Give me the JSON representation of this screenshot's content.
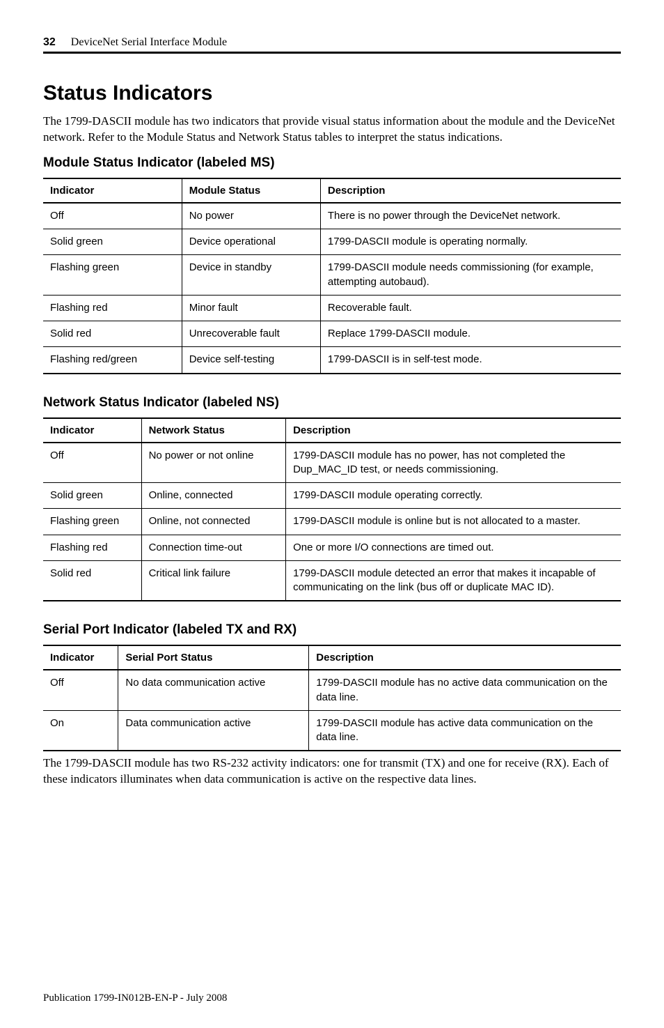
{
  "header": {
    "page_number": "32",
    "running_title": "DeviceNet Serial Interface Module"
  },
  "section": {
    "title": "Status Indicators",
    "intro": "The 1799-DASCII module has two indicators that provide visual status information about the module and the DeviceNet network. Refer to the Module Status and Network Status tables to interpret the status indications."
  },
  "module_status": {
    "heading": "Module Status Indicator (labeled MS)",
    "columns": [
      "Indicator",
      "Module Status",
      "Description"
    ],
    "col_widths": [
      "24%",
      "24%",
      "52%"
    ],
    "rows": [
      [
        "Off",
        "No power",
        "There is no power through the DeviceNet network."
      ],
      [
        "Solid green",
        "Device operational",
        "1799-DASCII module is operating normally."
      ],
      [
        "Flashing green",
        "Device in standby",
        "1799-DASCII module needs commissioning (for example, attempting autobaud)."
      ],
      [
        "Flashing red",
        "Minor fault",
        "Recoverable fault."
      ],
      [
        "Solid red",
        "Unrecoverable fault",
        "Replace 1799-DASCII module."
      ],
      [
        "Flashing red/green",
        "Device self-testing",
        "1799-DASCII is in self-test mode."
      ]
    ]
  },
  "network_status": {
    "heading": "Network Status Indicator (labeled NS)",
    "columns": [
      "Indicator",
      "Network Status",
      "Description"
    ],
    "col_widths": [
      "17%",
      "25%",
      "58%"
    ],
    "rows": [
      [
        "Off",
        "No power or not online",
        "1799-DASCII module has no power, has not completed the Dup_MAC_ID test, or needs commissioning."
      ],
      [
        "Solid green",
        "Online, connected",
        "1799-DASCII module operating correctly."
      ],
      [
        "Flashing green",
        "Online, not connected",
        "1799-DASCII module is online but is not allocated to a master."
      ],
      [
        "Flashing red",
        "Connection time-out",
        "One or more I/O connections are timed out."
      ],
      [
        "Solid red",
        "Critical link failure",
        "1799-DASCII module detected an error that makes it incapable of communicating on the link (bus off or duplicate MAC ID)."
      ]
    ]
  },
  "serial_port": {
    "heading": "Serial Port Indicator (labeled TX and RX)",
    "columns": [
      "Indicator",
      "Serial Port Status",
      "Description"
    ],
    "col_widths": [
      "13%",
      "33%",
      "54%"
    ],
    "rows": [
      [
        "Off",
        "No data communication active",
        "1799-DASCII module has no active data communication on the data line."
      ],
      [
        "On",
        "Data communication active",
        "1799-DASCII module has active data communication on the data line."
      ]
    ],
    "note": "The 1799-DASCII module has two RS-232 activity indicators: one for transmit (TX) and one for receive (RX). Each of these indicators illuminates when data communication is active on the respective data lines."
  },
  "footer": {
    "pub": "Publication 1799-IN012B-EN-P - July 2008"
  }
}
